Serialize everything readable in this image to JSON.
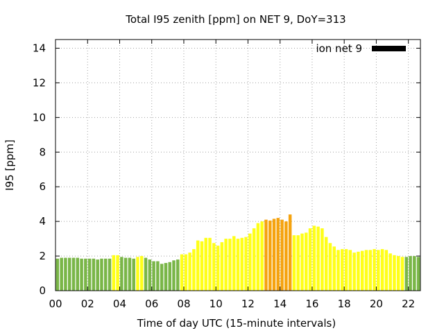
{
  "chart_data": {
    "type": "bar",
    "title": "Total I95 zenith [ppm] on NET 9, DoY=313",
    "xlabel": "Time of day UTC (15-minute intervals)",
    "ylabel": "I95 [ppm]",
    "ylim": [
      0,
      14.5
    ],
    "xlim": [
      0,
      22.75
    ],
    "yticks": [
      0,
      2,
      4,
      6,
      8,
      10,
      12,
      14
    ],
    "xticks": [
      {
        "value": 0,
        "label": "00"
      },
      {
        "value": 2,
        "label": "02"
      },
      {
        "value": 4,
        "label": "04"
      },
      {
        "value": 6,
        "label": "06"
      },
      {
        "value": 8,
        "label": "08"
      },
      {
        "value": 10,
        "label": "10"
      },
      {
        "value": 12,
        "label": "12"
      },
      {
        "value": 14,
        "label": "14"
      },
      {
        "value": 16,
        "label": "16"
      },
      {
        "value": 18,
        "label": "18"
      },
      {
        "value": 20,
        "label": "20"
      },
      {
        "value": 22,
        "label": "22"
      }
    ],
    "grid": true,
    "legend": {
      "label": "ion net 9",
      "placement": "top-right",
      "color": "#000000"
    },
    "interval_hours": 0.25,
    "colors": {
      "green": "#7ab648",
      "yellow": "#ffff19",
      "orange": "#f5a30f"
    },
    "series": [
      {
        "name": "ion net 9",
        "values": [
          1.85,
          1.9,
          1.9,
          1.9,
          1.9,
          1.9,
          1.85,
          1.85,
          1.85,
          1.85,
          1.8,
          1.85,
          1.85,
          1.85,
          2.05,
          2.05,
          1.95,
          1.9,
          1.9,
          1.85,
          1.95,
          2.0,
          1.9,
          1.8,
          1.7,
          1.7,
          1.55,
          1.6,
          1.65,
          1.75,
          1.8,
          2.1,
          2.1,
          2.2,
          2.4,
          2.9,
          2.85,
          3.05,
          3.05,
          2.75,
          2.6,
          2.8,
          3.0,
          3.0,
          3.15,
          3.0,
          3.05,
          3.1,
          3.3,
          3.6,
          3.9,
          4.0,
          4.1,
          4.05,
          4.15,
          4.2,
          4.1,
          4.0,
          4.4,
          3.2,
          3.2,
          3.3,
          3.35,
          3.6,
          3.75,
          3.7,
          3.6,
          3.1,
          2.75,
          2.55,
          2.35,
          2.4,
          2.4,
          2.35,
          2.2,
          2.25,
          2.3,
          2.35,
          2.35,
          2.4,
          2.35,
          2.4,
          2.35,
          2.15,
          2.05,
          2.0,
          1.95,
          1.95,
          2.0,
          2.0,
          1.95
        ],
        "colors": [
          "green",
          "green",
          "green",
          "green",
          "green",
          "green",
          "green",
          "green",
          "green",
          "green",
          "green",
          "green",
          "green",
          "green",
          "yellow",
          "yellow",
          "green",
          "green",
          "green",
          "green",
          "yellow",
          "yellow",
          "green",
          "green",
          "green",
          "green",
          "green",
          "green",
          "green",
          "green",
          "green",
          "yellow",
          "yellow",
          "yellow",
          "yellow",
          "yellow",
          "yellow",
          "yellow",
          "yellow",
          "yellow",
          "yellow",
          "yellow",
          "yellow",
          "yellow",
          "yellow",
          "yellow",
          "yellow",
          "yellow",
          "yellow",
          "yellow",
          "yellow",
          "yellow",
          "orange",
          "orange",
          "orange",
          "orange",
          "orange",
          "orange",
          "orange",
          "yellow",
          "yellow",
          "yellow",
          "yellow",
          "yellow",
          "yellow",
          "yellow",
          "yellow",
          "yellow",
          "yellow",
          "yellow",
          "yellow",
          "yellow",
          "yellow",
          "yellow",
          "yellow",
          "yellow",
          "yellow",
          "yellow",
          "yellow",
          "yellow",
          "yellow",
          "yellow",
          "yellow",
          "yellow",
          "yellow",
          "yellow",
          "yellow",
          "green",
          "green",
          "green",
          "green"
        ]
      }
    ]
  }
}
